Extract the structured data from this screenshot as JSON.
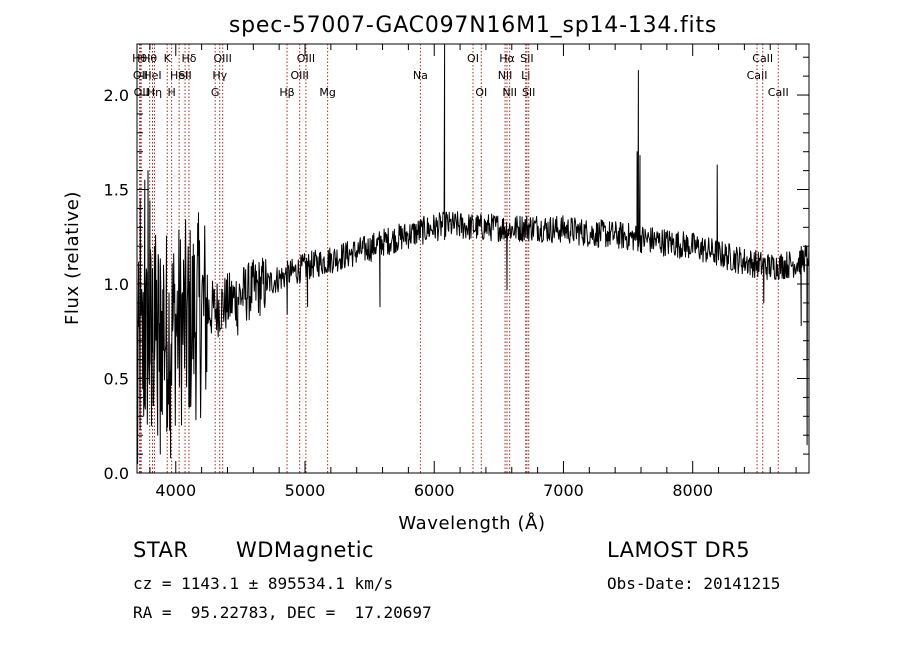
{
  "chart_data": {
    "type": "line",
    "title": "spec-57007-GAC097N16M1_sp14-134.fits",
    "xlabel": "Wavelength (Å)",
    "ylabel": "Flux (relative)",
    "xlim": [
      3700,
      8900
    ],
    "ylim": [
      0.0,
      2.27
    ],
    "xticks": [
      4000,
      5000,
      6000,
      7000,
      8000
    ],
    "yticks": [
      0.0,
      0.5,
      1.0,
      1.5,
      2.0
    ],
    "xtick_labels": [
      "4000",
      "5000",
      "6000",
      "7000",
      "8000"
    ],
    "ytick_labels": [
      "0.0",
      "0.5",
      "1.0",
      "1.5",
      "2.0"
    ],
    "grid": false,
    "line_color": "#000000",
    "marker_line_color": "#b22222",
    "continuum": [
      [
        3700,
        0.55
      ],
      [
        3800,
        0.72
      ],
      [
        3900,
        0.76
      ],
      [
        4000,
        0.78
      ],
      [
        4100,
        0.8
      ],
      [
        4200,
        0.84
      ],
      [
        4300,
        0.87
      ],
      [
        4400,
        0.9
      ],
      [
        4500,
        0.94
      ],
      [
        4600,
        0.97
      ],
      [
        4700,
        1.0
      ],
      [
        4800,
        1.03
      ],
      [
        4900,
        1.06
      ],
      [
        5000,
        1.09
      ],
      [
        5100,
        1.11
      ],
      [
        5200,
        1.13
      ],
      [
        5300,
        1.15
      ],
      [
        5400,
        1.17
      ],
      [
        5500,
        1.19
      ],
      [
        5600,
        1.22
      ],
      [
        5700,
        1.24
      ],
      [
        5800,
        1.26
      ],
      [
        5900,
        1.28
      ],
      [
        6000,
        1.3
      ],
      [
        6100,
        1.31
      ],
      [
        6200,
        1.31
      ],
      [
        6300,
        1.3
      ],
      [
        6400,
        1.3
      ],
      [
        6500,
        1.3
      ],
      [
        6600,
        1.29
      ],
      [
        6700,
        1.3
      ],
      [
        6800,
        1.3
      ],
      [
        6900,
        1.29
      ],
      [
        7000,
        1.29
      ],
      [
        7200,
        1.27
      ],
      [
        7400,
        1.26
      ],
      [
        7600,
        1.24
      ],
      [
        7800,
        1.22
      ],
      [
        8000,
        1.2
      ],
      [
        8200,
        1.16
      ],
      [
        8400,
        1.12
      ],
      [
        8600,
        1.09
      ],
      [
        8800,
        1.11
      ],
      [
        8900,
        1.15
      ]
    ],
    "features": [
      {
        "x": 3705,
        "y": 0.05
      },
      {
        "x": 3725,
        "y": 1.45
      },
      {
        "x": 3760,
        "y": 1.55
      },
      {
        "x": 3785,
        "y": 1.6
      },
      {
        "x": 3800,
        "y": 1.44
      },
      {
        "x": 3812,
        "y": 0.25
      },
      {
        "x": 3835,
        "y": 1.2
      },
      {
        "x": 3860,
        "y": 0.2
      },
      {
        "x": 3880,
        "y": 0.1
      },
      {
        "x": 3905,
        "y": 1.1
      },
      {
        "x": 3930,
        "y": 0.22
      },
      {
        "x": 3960,
        "y": 0.08
      },
      {
        "x": 3990,
        "y": 0.95
      },
      {
        "x": 4060,
        "y": 1.0
      },
      {
        "x": 4101,
        "y": 0.35
      },
      {
        "x": 4170,
        "y": 1.32
      },
      {
        "x": 4230,
        "y": 0.6
      },
      {
        "x": 4480,
        "y": 0.73
      },
      {
        "x": 4862,
        "y": 0.84
      },
      {
        "x": 5020,
        "y": 0.88
      },
      {
        "x": 5580,
        "y": 0.88
      },
      {
        "x": 6080,
        "y": 2.27
      },
      {
        "x": 6095,
        "y": 1.38
      },
      {
        "x": 6563,
        "y": 0.97
      },
      {
        "x": 7570,
        "y": 1.7
      },
      {
        "x": 7580,
        "y": 2.13
      },
      {
        "x": 7592,
        "y": 1.68
      },
      {
        "x": 8190,
        "y": 1.63
      },
      {
        "x": 8550,
        "y": 0.9
      },
      {
        "x": 8840,
        "y": 0.78
      },
      {
        "x": 8885,
        "y": 0.15
      }
    ],
    "markers": [
      {
        "x": 3720,
        "row": 1,
        "label": "Hθ"
      },
      {
        "x": 3727,
        "row": 2,
        "label": "OII"
      },
      {
        "x": 3733,
        "row": 3,
        "label": "OII"
      },
      {
        "x": 3798,
        "row": 1,
        "label": "Hθ"
      },
      {
        "x": 3820,
        "row": 2,
        "label": "HeI"
      },
      {
        "x": 3835,
        "row": 3,
        "label": "Hη"
      },
      {
        "x": 3934,
        "row": 1,
        "label": "K"
      },
      {
        "x": 3968,
        "row": 3,
        "label": "H"
      },
      {
        "x": 4026,
        "row": 2,
        "label": "HeI"
      },
      {
        "x": 4072,
        "row": 2,
        "label": "SII"
      },
      {
        "x": 4102,
        "row": 1,
        "label": "Hδ"
      },
      {
        "x": 4340,
        "row": 2,
        "label": "Hγ"
      },
      {
        "x": 4363,
        "row": 1,
        "label": "OIII"
      },
      {
        "x": 4305,
        "row": 3,
        "label": "G"
      },
      {
        "x": 4861,
        "row": 3,
        "label": "Hβ"
      },
      {
        "x": 4959,
        "row": 2,
        "label": "OIII"
      },
      {
        "x": 5007,
        "row": 1,
        "label": "OIII"
      },
      {
        "x": 5175,
        "row": 3,
        "label": "Mg"
      },
      {
        "x": 5893,
        "row": 2,
        "label": "Na"
      },
      {
        "x": 6300,
        "row": 1,
        "label": "OI"
      },
      {
        "x": 6364,
        "row": 3,
        "label": "OI"
      },
      {
        "x": 6548,
        "row": 2,
        "label": "NII"
      },
      {
        "x": 6563,
        "row": 1,
        "label": "Hα"
      },
      {
        "x": 6584,
        "row": 3,
        "label": "NII"
      },
      {
        "x": 6708,
        "row": 2,
        "label": "Li"
      },
      {
        "x": 6717,
        "row": 1,
        "label": "SII"
      },
      {
        "x": 6731,
        "row": 3,
        "label": "SII"
      },
      {
        "x": 8498,
        "row": 2,
        "label": "CaII"
      },
      {
        "x": 8542,
        "row": 1,
        "label": "CaII"
      },
      {
        "x": 8662,
        "row": 3,
        "label": "CaII"
      }
    ]
  },
  "info": {
    "class_label": "STAR",
    "subclass": "WDMagnetic",
    "survey": "LAMOST DR5",
    "cz": "cz = 1143.1 ± 895534.1 km/s",
    "obs_date": "Obs-Date: 20141215",
    "coords": "RA =  95.22783, DEC =  17.20697"
  }
}
